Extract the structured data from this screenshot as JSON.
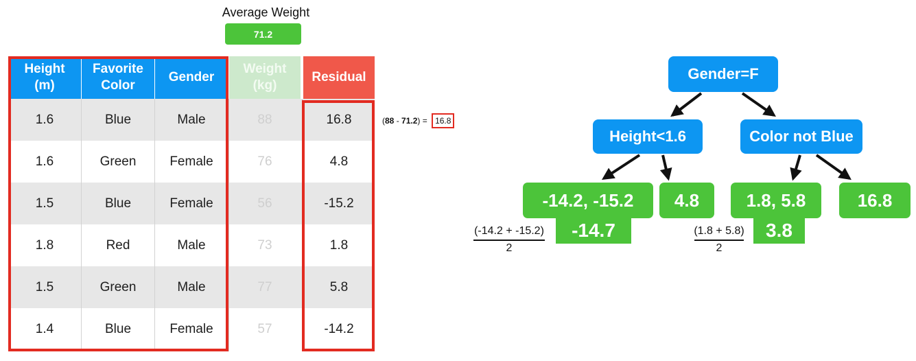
{
  "average": {
    "title": "Average Weight",
    "value": "71.2"
  },
  "table": {
    "headers": [
      {
        "line1": "Height",
        "line2": "(m)"
      },
      {
        "line1": "Favorite",
        "line2": "Color"
      },
      {
        "line1": "Gender",
        "line2": ""
      },
      {
        "line1": "Weight",
        "line2": "(kg)"
      },
      {
        "line1": "Residual",
        "line2": ""
      }
    ],
    "rows": [
      {
        "height": "1.6",
        "color": "Blue",
        "gender": "Male",
        "weight": "88",
        "residual": "16.8"
      },
      {
        "height": "1.6",
        "color": "Green",
        "gender": "Female",
        "weight": "76",
        "residual": "4.8"
      },
      {
        "height": "1.5",
        "color": "Blue",
        "gender": "Female",
        "weight": "56",
        "residual": "-15.2"
      },
      {
        "height": "1.8",
        "color": "Red",
        "gender": "Male",
        "weight": "73",
        "residual": "1.8"
      },
      {
        "height": "1.5",
        "color": "Green",
        "gender": "Male",
        "weight": "77",
        "residual": "5.8"
      },
      {
        "height": "1.4",
        "color": "Blue",
        "gender": "Female",
        "weight": "57",
        "residual": "-14.2"
      }
    ]
  },
  "calculation": {
    "open": "(",
    "a": "88",
    "minus": " - ",
    "b": "71.2",
    "close": ") = ",
    "result": "16.8"
  },
  "tree": {
    "root": "Gender=F",
    "left": "Height<1.6",
    "right": "Color not Blue",
    "leaves": [
      "-14.2, -15.2",
      "4.8",
      "1.8, 5.8",
      "16.8"
    ],
    "left_avg": {
      "numerator": "(-14.2 + -15.2)",
      "denominator": "2",
      "result": "-14.7"
    },
    "right_avg": {
      "numerator": "(1.8 + 5.8)",
      "denominator": "2",
      "result": "3.8"
    }
  },
  "colors": {
    "blue": "#0d96f2",
    "green": "#4cc43a",
    "red": "#e22b21",
    "residual_header": "#f0584a"
  }
}
